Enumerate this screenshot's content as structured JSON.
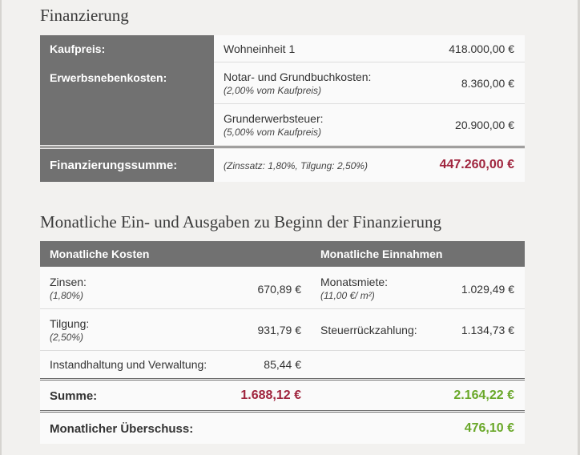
{
  "financing": {
    "heading": "Finanzierung",
    "purchase_label": "Kaufpreis:",
    "unit_desc": "Wohneinheit 1",
    "unit_amount": "418.000,00 €",
    "side_costs_label": "Erwerbsnebenkosten:",
    "notary_desc": "Notar- und Grundbuchkosten:",
    "notary_note": "(2,00% vom Kaufpreis)",
    "notary_amount": "8.360,00 €",
    "tax_desc": "Grunderwerbsteuer:",
    "tax_note": "(5,00% vom Kaufpreis)",
    "tax_amount": "20.900,00 €",
    "sum_label": "Finanzierungssumme:",
    "sum_note": "(Zinssatz: 1,80%, Tilgung: 2,50%)",
    "sum_amount": "447.260,00 €",
    "colors": {
      "header_bg": "#717171",
      "sum_color": "#a0253e"
    }
  },
  "monthly": {
    "heading": "Monatliche Ein- und Ausgaben zu Beginn der Finanzierung",
    "costs_header": "Monatliche Kosten",
    "income_header": "Monatliche Einnahmen",
    "interest_label": "Zinsen:",
    "interest_note": "(1,80%)",
    "interest_amount": "670,89 €",
    "rent_label": "Monatsmiete:",
    "rent_note": "(11,00 €/ m²)",
    "rent_amount": "1.029,49 €",
    "repayment_label": "Tilgung:",
    "repayment_note": "(2,50%)",
    "repayment_amount": "931,79 €",
    "tax_refund_label": "Steuerrückzahlung:",
    "tax_refund_amount": "1.134,73 €",
    "maintenance_label": "Instandhaltung und Verwaltung:",
    "maintenance_amount": "85,44 €",
    "sum_label": "Summe:",
    "costs_sum": "1.688,12 €",
    "income_sum": "2.164,22 €",
    "surplus_label": "Monatlicher Überschuss:",
    "surplus_amount": "476,10 €",
    "colors": {
      "negative": "#a0253e",
      "positive": "#6aa82a"
    }
  }
}
